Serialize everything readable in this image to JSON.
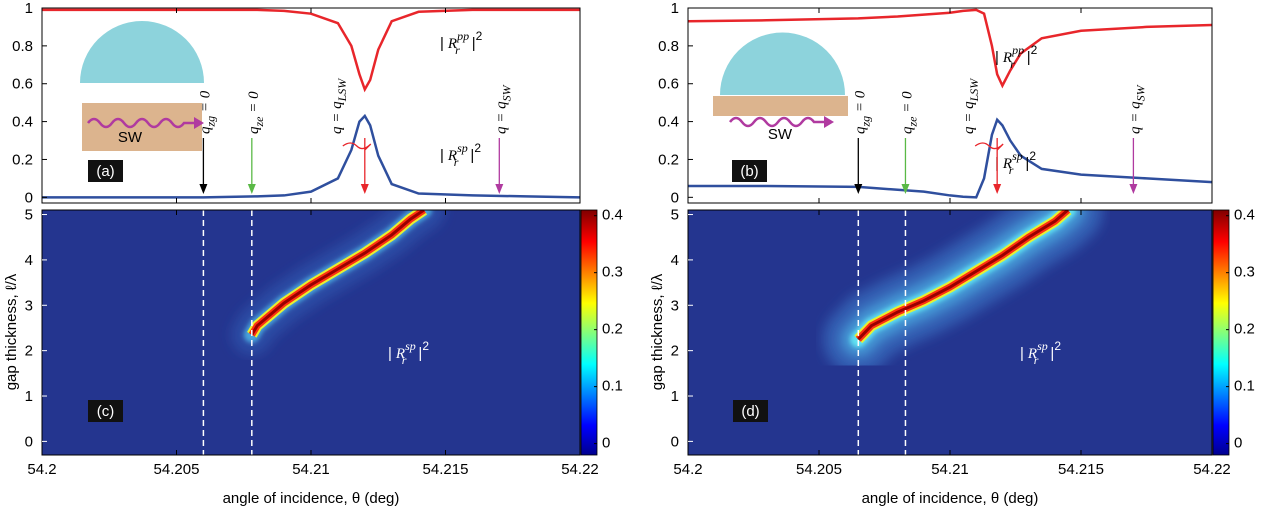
{
  "chart_data": [
    {
      "type": "line",
      "panel_label": "(a)",
      "inset_label": "SW",
      "xlim": [
        54.2,
        54.22
      ],
      "xticks": [
        54.2,
        54.205,
        54.21,
        54.215,
        54.22
      ],
      "ylim": [
        -0.03,
        1
      ],
      "yticks": [
        0,
        0.2,
        0.4,
        0.6,
        0.8,
        1
      ],
      "x": [
        54.2,
        54.204,
        54.206,
        54.208,
        54.209,
        54.21,
        54.211,
        54.2115,
        54.2118,
        54.212,
        54.2122,
        54.2125,
        54.213,
        54.214,
        54.216,
        54.218,
        54.22
      ],
      "series": [
        {
          "color": "#e8262b",
          "label": {
            "open": "|",
            "base": "R",
            "sub": "r",
            "sup": "pp",
            "close": "|",
            "power": "2"
          },
          "values": [
            0.99,
            0.99,
            0.99,
            0.99,
            0.985,
            0.97,
            0.92,
            0.8,
            0.65,
            0.57,
            0.62,
            0.78,
            0.93,
            0.98,
            0.99,
            0.99,
            0.99
          ]
        },
        {
          "color": "#2f4f9e",
          "label": {
            "open": "|",
            "base": "R",
            "sub": "r",
            "sup": "sp",
            "close": "|",
            "power": "2"
          },
          "values": [
            0,
            0,
            0,
            0.005,
            0.01,
            0.03,
            0.1,
            0.25,
            0.4,
            0.43,
            0.38,
            0.22,
            0.07,
            0.02,
            0.01,
            0.005,
            0
          ]
        }
      ],
      "annotations": [
        {
          "x": 54.206,
          "color": "#000000",
          "text": "q",
          "sub": "zg",
          "suffix": " = 0"
        },
        {
          "x": 54.2078,
          "color": "#5ab946",
          "text": "q",
          "sub": "ze",
          "suffix": " = 0"
        },
        {
          "x": 54.212,
          "color": "#e8262b",
          "text": "q = q",
          "sub": "LSW"
        },
        {
          "x": 54.217,
          "color": "#b03aa0",
          "text": "q = q",
          "sub": "SW"
        }
      ]
    },
    {
      "type": "line",
      "panel_label": "(b)",
      "inset_label": "SW",
      "xlim": [
        54.2,
        54.22
      ],
      "xticks": [
        54.2,
        54.205,
        54.21,
        54.215,
        54.22
      ],
      "ylim": [
        -0.03,
        1
      ],
      "yticks": [
        0,
        0.2,
        0.4,
        0.6,
        0.8,
        1
      ],
      "x": [
        54.2,
        54.203,
        54.2065,
        54.208,
        54.209,
        54.21,
        54.2105,
        54.211,
        54.2113,
        54.2116,
        54.2118,
        54.212,
        54.2123,
        54.2127,
        54.2135,
        54.215,
        54.2175,
        54.22
      ],
      "series": [
        {
          "color": "#e8262b",
          "label": {
            "open": "|",
            "base": "R",
            "sub": "r",
            "sup": "pp",
            "close": "|",
            "power": "2"
          },
          "values": [
            0.93,
            0.935,
            0.945,
            0.955,
            0.965,
            0.975,
            0.985,
            0.99,
            0.97,
            0.8,
            0.65,
            0.59,
            0.67,
            0.76,
            0.84,
            0.88,
            0.9,
            0.91
          ]
        },
        {
          "color": "#2f4f9e",
          "label": {
            "open": "|",
            "base": "R",
            "sub": "r",
            "sup": "sp",
            "close": "|",
            "power": "2"
          },
          "values": [
            0.06,
            0.06,
            0.055,
            0.04,
            0.03,
            0.01,
            0.003,
            0,
            0.1,
            0.33,
            0.41,
            0.38,
            0.3,
            0.22,
            0.15,
            0.12,
            0.1,
            0.08
          ]
        }
      ],
      "annotations": [
        {
          "x": 54.2065,
          "color": "#000000",
          "text": "q",
          "sub": "zg",
          "suffix": " = 0"
        },
        {
          "x": 54.2083,
          "color": "#5ab946",
          "text": "q",
          "sub": "ze",
          "suffix": " = 0"
        },
        {
          "x": 54.2118,
          "color": "#e8262b",
          "text": "q = q",
          "sub": "LSW"
        },
        {
          "x": 54.217,
          "color": "#b03aa0",
          "text": "q = q",
          "sub": "SW"
        }
      ]
    },
    {
      "type": "heatmap",
      "panel_label": "(c)",
      "xlabel": "angle of incidence, θ (deg)",
      "ylabel": "gap thickness, ℓ/λ",
      "xlim": [
        54.2,
        54.22
      ],
      "xticks": [
        54.2,
        54.205,
        54.21,
        54.215,
        54.22
      ],
      "ylim": [
        -0.3,
        5.1
      ],
      "yticks": [
        0,
        1,
        2,
        3,
        4,
        5
      ],
      "zlim": [
        -0.02,
        0.41
      ],
      "zticks": [
        0,
        0.1,
        0.2,
        0.3,
        0.4
      ],
      "vlines": [
        54.206,
        54.2078
      ],
      "ridge": {
        "x": [
          54.2078,
          54.208,
          54.209,
          54.21,
          54.211,
          54.212,
          54.213,
          54.2137,
          54.2142
        ],
        "y": [
          2.35,
          2.55,
          3.05,
          3.45,
          3.8,
          4.15,
          4.55,
          4.9,
          5.1
        ]
      },
      "label": {
        "open": "|",
        "base": "R",
        "sub": "r",
        "sup": "sp",
        "close": "|",
        "power": "2"
      }
    },
    {
      "type": "heatmap",
      "panel_label": "(d)",
      "xlabel": "angle of incidence, θ (deg)",
      "ylabel": "gap thickness, ℓ/λ",
      "xlim": [
        54.2,
        54.22
      ],
      "xticks": [
        54.2,
        54.205,
        54.21,
        54.215,
        54.22
      ],
      "ylim": [
        -0.3,
        5.1
      ],
      "yticks": [
        0,
        1,
        2,
        3,
        4,
        5
      ],
      "zlim": [
        -0.02,
        0.41
      ],
      "zticks": [
        0,
        0.1,
        0.2,
        0.3,
        0.4
      ],
      "vlines": [
        54.2065,
        54.2083
      ],
      "ridge": {
        "x": [
          54.2065,
          54.207,
          54.208,
          54.209,
          54.21,
          54.211,
          54.212,
          54.213,
          54.214,
          54.2145
        ],
        "y": [
          2.25,
          2.55,
          2.85,
          3.1,
          3.4,
          3.75,
          4.1,
          4.5,
          4.85,
          5.1
        ]
      },
      "label": {
        "open": "|",
        "base": "R",
        "sub": "r",
        "sup": "sp",
        "close": "|",
        "power": "2"
      }
    }
  ]
}
